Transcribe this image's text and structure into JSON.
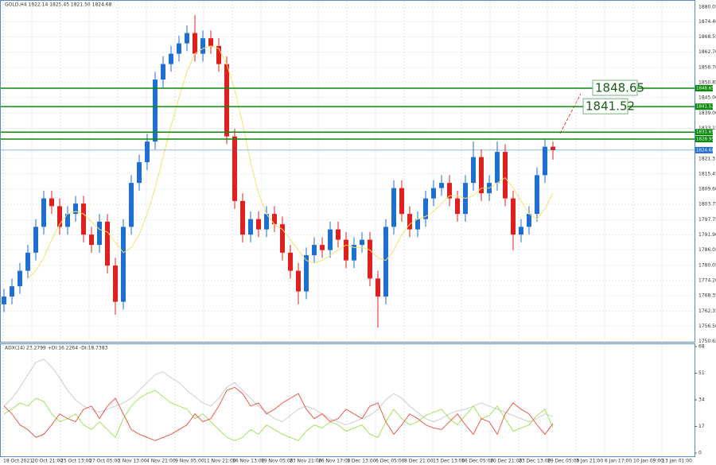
{
  "chart_data": [
    {
      "type": "candlestick",
      "title": "GOLD,H4  1822.14 1825.45 1821.50 1824.68",
      "up_color": "#1e6fd0",
      "down_color": "#e0201e",
      "ma_color": "#f2e36a",
      "ylim": [
        1750.5,
        1882.8
      ],
      "yticks": [
        1880.05,
        {
          "value": 1874.4,
          "label": "1874.40"
        },
        1868.55,
        {
          "value": 1862.7,
          "label": "1862.70"
        },
        {
          "value": 1856.7,
          "label": "1856.70"
        },
        1850.85,
        {
          "value": 1845.0,
          "label": "1845.00"
        },
        {
          "value": 1839.0,
          "label": "1839.00"
        },
        1833.15,
        1821.3,
        1815.45,
        {
          "value": 1809.6,
          "label": "1809.60"
        },
        1803.75,
        1797.75,
        {
          "value": 1791.9,
          "label": "1791.90"
        },
        1786.05,
        1780.05,
        {
          "value": 1774.2,
          "label": "1774.20"
        },
        1768.35,
        1762.35,
        {
          "value": 1756.5,
          "label": "1756.50"
        },
        1750.65
      ],
      "grid": true,
      "level_lines": [
        1848.65,
        1841.52,
        1831.65,
        1828.95
      ],
      "level_color": "#0a8a0a",
      "callouts": [
        1848.65,
        1841.52
      ],
      "last_price": 1824.68,
      "last_price_color": "#1e6fd0",
      "time_labels": [
        "18 Oct 2021",
        "20 Oct 21:00",
        "25 Oct 13:00",
        "27 Oct 05:00",
        "1 Nov 13:00",
        "4 Nov 21:00",
        "9 Nov 05:00",
        "11 Nov 21:00",
        "16 Nov 13:00",
        "19 Nov 05:00",
        "23 Nov 21:00",
        "26 Nov 17:00",
        "1 Dec 13:00",
        "6 Dec 05:00",
        "8 Dec 21:00",
        "13 Dec 13:00",
        "16 Dec 05:00",
        "20 Dec 21:00",
        "23 Dec 13:00",
        "29 Dec 05:00",
        "3 Jan 21:00",
        "6 Jan 17:00",
        "10 Jan 09:00",
        "13 Jan 01:00"
      ],
      "open": [
        1765,
        1768,
        1772,
        1778,
        1785,
        1795,
        1806,
        1803,
        1795,
        1800,
        1804,
        1792,
        1788,
        1797,
        1780,
        1766,
        1795,
        1812,
        1820,
        1828,
        1852,
        1858,
        1862,
        1866,
        1870,
        1862,
        1868,
        1865,
        1858,
        1830,
        1805,
        1792,
        1798,
        1794,
        1800,
        1796,
        1785,
        1778,
        1770,
        1784,
        1788,
        1786,
        1794,
        1790,
        1782,
        1788,
        1790,
        1775,
        1768,
        1795,
        1810,
        1800,
        1794,
        1798,
        1806,
        1810,
        1812,
        1806,
        1800,
        1812,
        1822,
        1808,
        1812,
        1824,
        1806,
        1792,
        1795,
        1800,
        1815,
        1826
      ],
      "high": [
        1771,
        1775,
        1781,
        1788,
        1798,
        1809,
        1809,
        1806,
        1803,
        1807,
        1807,
        1795,
        1800,
        1800,
        1783,
        1798,
        1815,
        1823,
        1831,
        1855,
        1861,
        1865,
        1869,
        1873,
        1877,
        1871,
        1871,
        1868,
        1861,
        1833,
        1808,
        1801,
        1801,
        1803,
        1803,
        1799,
        1788,
        1781,
        1787,
        1791,
        1791,
        1797,
        1797,
        1793,
        1791,
        1793,
        1793,
        1778,
        1798,
        1813,
        1813,
        1803,
        1801,
        1809,
        1813,
        1815,
        1815,
        1809,
        1815,
        1828,
        1825,
        1815,
        1828,
        1827,
        1809,
        1798,
        1803,
        1818,
        1829,
        1828
      ],
      "low": [
        1762,
        1765,
        1769,
        1775,
        1782,
        1792,
        1800,
        1792,
        1792,
        1797,
        1789,
        1785,
        1785,
        1777,
        1761,
        1763,
        1792,
        1809,
        1817,
        1825,
        1849,
        1855,
        1859,
        1863,
        1859,
        1859,
        1862,
        1855,
        1827,
        1802,
        1789,
        1789,
        1791,
        1791,
        1793,
        1782,
        1775,
        1765,
        1767,
        1781,
        1783,
        1783,
        1787,
        1779,
        1779,
        1785,
        1772,
        1756,
        1765,
        1792,
        1797,
        1791,
        1791,
        1795,
        1803,
        1807,
        1803,
        1797,
        1797,
        1809,
        1805,
        1805,
        1809,
        1803,
        1786,
        1789,
        1792,
        1797,
        1812,
        1821
      ],
      "close": [
        1768,
        1772,
        1778,
        1785,
        1795,
        1806,
        1803,
        1795,
        1800,
        1804,
        1792,
        1788,
        1797,
        1780,
        1766,
        1795,
        1812,
        1820,
        1828,
        1852,
        1858,
        1862,
        1866,
        1870,
        1862,
        1868,
        1865,
        1858,
        1830,
        1805,
        1792,
        1798,
        1794,
        1800,
        1796,
        1785,
        1778,
        1770,
        1784,
        1788,
        1786,
        1794,
        1790,
        1782,
        1788,
        1790,
        1775,
        1768,
        1795,
        1810,
        1800,
        1794,
        1798,
        1806,
        1810,
        1812,
        1806,
        1800,
        1812,
        1822,
        1808,
        1812,
        1824,
        1806,
        1792,
        1795,
        1800,
        1815,
        1826,
        1824.68
      ],
      "ma": [
        null,
        null,
        null,
        1775,
        1778,
        1783,
        1790,
        1796,
        1800,
        1801,
        1800,
        1797,
        1794,
        1793,
        1789,
        1785,
        1787,
        1792,
        1800,
        1810,
        1822,
        1834,
        1845,
        1855,
        1862,
        1864,
        1865,
        1864,
        1858,
        1848,
        1835,
        1820,
        1808,
        1800,
        1796,
        1794,
        1790,
        1786,
        1782,
        1781,
        1782,
        1784,
        1786,
        1788,
        1787,
        1787,
        1786,
        1783,
        1782,
        1786,
        1792,
        1796,
        1798,
        1799,
        1801,
        1804,
        1807,
        1807,
        1806,
        1807,
        1810,
        1810,
        1812,
        1814,
        1810,
        1805,
        1800,
        1798,
        1802,
        1808
      ]
    },
    {
      "type": "line",
      "title": "ADX(14) 23.2799 +DI:16.2264 -DI:18.7383",
      "ylim": [
        0,
        68
      ],
      "yticks": [
        0,
        17,
        34,
        51,
        68
      ],
      "series": [
        {
          "color": "#c8c8c8",
          "values": [
            30,
            35,
            42,
            50,
            58,
            60,
            55,
            48,
            40,
            34,
            30,
            28,
            26,
            28,
            30,
            32,
            35,
            40,
            45,
            50,
            52,
            48,
            45,
            40,
            36,
            32,
            30,
            35,
            42,
            45,
            40,
            35,
            30,
            26,
            22,
            20,
            24,
            28,
            30,
            28,
            25,
            22,
            20,
            18,
            20,
            22,
            24,
            28,
            34,
            38,
            35,
            30,
            26,
            22,
            20,
            22,
            25,
            27,
            28,
            30,
            32,
            30,
            28,
            26,
            24,
            22,
            20,
            22,
            25,
            23.28
          ]
        },
        {
          "color": "#9be04a",
          "values": [
            25,
            28,
            32,
            30,
            35,
            33,
            25,
            20,
            22,
            25,
            18,
            15,
            20,
            15,
            10,
            22,
            30,
            35,
            38,
            40,
            36,
            32,
            30,
            28,
            22,
            25,
            20,
            15,
            10,
            8,
            10,
            15,
            12,
            18,
            15,
            12,
            10,
            8,
            14,
            18,
            16,
            20,
            18,
            14,
            16,
            18,
            12,
            10,
            20,
            28,
            22,
            18,
            20,
            24,
            26,
            28,
            22,
            18,
            24,
            30,
            22,
            24,
            30,
            22,
            14,
            16,
            18,
            24,
            28,
            16.23
          ]
        },
        {
          "color": "#f04a3a",
          "values": [
            30,
            25,
            18,
            15,
            10,
            12,
            18,
            25,
            22,
            20,
            28,
            30,
            22,
            30,
            35,
            25,
            15,
            12,
            10,
            8,
            10,
            12,
            15,
            18,
            25,
            20,
            22,
            30,
            40,
            42,
            38,
            30,
            32,
            25,
            28,
            32,
            35,
            38,
            28,
            22,
            25,
            20,
            22,
            28,
            25,
            22,
            30,
            32,
            20,
            12,
            18,
            25,
            22,
            18,
            16,
            15,
            20,
            25,
            18,
            12,
            22,
            20,
            12,
            25,
            32,
            28,
            25,
            18,
            12,
            18.74
          ]
        }
      ]
    }
  ]
}
